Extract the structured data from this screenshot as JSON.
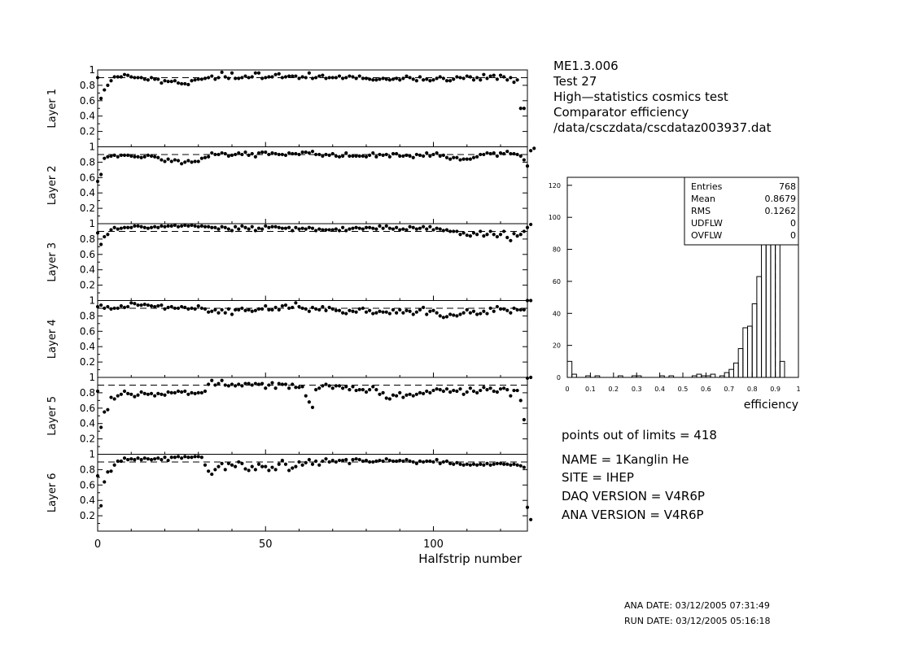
{
  "header": {
    "lines": [
      "ME1.3.006",
      "Test 27",
      "High—statistics cosmics test",
      "Comparator efficiency",
      "/data/csczdata/cscdataz003937.dat"
    ]
  },
  "info": {
    "points_out_of_limits": "points out of limits = 418",
    "name": "NAME =   1Kanglin He",
    "site": "SITE =     IHEP",
    "daq_version": "DAQ VERSION =     V4R6P",
    "ana_version": "ANA VERSION =     V4R6P"
  },
  "footer": {
    "ana_date": "ANA DATE:  03/12/2005 07:31:49",
    "run_date": "RUN DATE:  03/12/2005 05:16:18"
  },
  "colors": {
    "ink": "#000000",
    "background": "#ffffff"
  },
  "chart_data": [
    {
      "type": "scatter",
      "title": "",
      "xlabel": "Halfstrip number",
      "xlim": [
        0,
        128
      ],
      "ylim": [
        0,
        1
      ],
      "x_ticks": [
        "0",
        "50",
        "100"
      ],
      "y_ticks": [
        "0.2",
        "0.4",
        "0.6",
        "0.8",
        "1"
      ],
      "reference_line": 0.9,
      "panels": [
        {
          "ylabel": "Layer 1",
          "x_start": 0,
          "values": [
            0.9,
            0.63,
            0.74,
            0.8,
            0.86,
            0.91,
            0.91,
            0.91,
            0.94,
            0.93,
            0.91,
            0.9,
            0.9,
            0.9,
            0.88,
            0.87,
            0.9,
            0.88,
            0.88,
            0.83,
            0.86,
            0.85,
            0.85,
            0.86,
            0.83,
            0.82,
            0.82,
            0.81,
            0.86,
            0.87,
            0.88,
            0.88,
            0.89,
            0.9,
            0.92,
            0.88,
            0.9,
            0.97,
            0.91,
            0.89,
            0.96,
            0.89,
            0.89,
            0.9,
            0.92,
            0.9,
            0.91,
            0.96,
            0.96,
            0.89,
            0.9,
            0.91,
            0.91,
            0.94,
            0.95,
            0.9,
            0.91,
            0.92,
            0.92,
            0.92,
            0.89,
            0.91,
            0.9,
            0.96,
            0.89,
            0.9,
            0.92,
            0.93,
            0.89,
            0.9,
            0.9,
            0.9,
            0.92,
            0.89,
            0.9,
            0.92,
            0.91,
            0.89,
            0.92,
            0.89,
            0.89,
            0.88,
            0.87,
            0.87,
            0.88,
            0.89,
            0.88,
            0.87,
            0.88,
            0.89,
            0.87,
            0.89,
            0.92,
            0.9,
            0.88,
            0.86,
            0.91,
            0.87,
            0.88,
            0.86,
            0.87,
            0.89,
            0.91,
            0.89,
            0.86,
            0.86,
            0.88,
            0.91,
            0.9,
            0.89,
            0.92,
            0.91,
            0.87,
            0.9,
            0.87,
            0.94,
            0.89,
            0.92,
            0.93,
            0.88,
            0.93,
            0.91,
            0.87,
            0.9,
            0.84,
            0.87,
            0.5,
            0.5
          ]
        },
        {
          "ylabel": "Layer 2",
          "x_start": 0,
          "values": [
            0.55,
            0.64,
            0.85,
            0.87,
            0.88,
            0.89,
            0.87,
            0.89,
            0.89,
            0.89,
            0.88,
            0.87,
            0.87,
            0.86,
            0.87,
            0.89,
            0.88,
            0.87,
            0.86,
            0.83,
            0.81,
            0.84,
            0.81,
            0.83,
            0.82,
            0.78,
            0.8,
            0.82,
            0.8,
            0.81,
            0.81,
            0.85,
            0.86,
            0.87,
            0.92,
            0.9,
            0.9,
            0.92,
            0.91,
            0.88,
            0.89,
            0.9,
            0.92,
            0.9,
            0.93,
            0.89,
            0.91,
            0.87,
            0.92,
            0.93,
            0.93,
            0.9,
            0.92,
            0.91,
            0.9,
            0.9,
            0.89,
            0.92,
            0.91,
            0.91,
            0.9,
            0.93,
            0.93,
            0.92,
            0.94,
            0.9,
            0.9,
            0.88,
            0.9,
            0.89,
            0.91,
            0.88,
            0.87,
            0.88,
            0.92,
            0.88,
            0.88,
            0.88,
            0.88,
            0.88,
            0.87,
            0.89,
            0.92,
            0.87,
            0.9,
            0.89,
            0.9,
            0.87,
            0.91,
            0.91,
            0.88,
            0.88,
            0.89,
            0.88,
            0.86,
            0.9,
            0.89,
            0.88,
            0.92,
            0.88,
            0.9,
            0.92,
            0.88,
            0.89,
            0.86,
            0.84,
            0.86,
            0.86,
            0.83,
            0.84,
            0.84,
            0.84,
            0.86,
            0.87,
            0.9,
            0.9,
            0.92,
            0.91,
            0.92,
            0.88,
            0.92,
            0.91,
            0.94,
            0.91,
            0.91,
            0.9,
            0.88,
            0.83,
            0.75,
            0.95,
            0.98
          ]
        },
        {
          "ylabel": "Layer 3",
          "x_start": 0,
          "values": [
            0.88,
            0.73,
            0.83,
            0.86,
            0.92,
            0.95,
            0.93,
            0.94,
            0.95,
            0.95,
            0.95,
            0.97,
            0.97,
            0.96,
            0.95,
            0.94,
            0.95,
            0.96,
            0.95,
            0.97,
            0.96,
            0.97,
            0.97,
            0.98,
            0.96,
            0.97,
            0.98,
            0.97,
            0.98,
            0.97,
            0.96,
            0.97,
            0.96,
            0.96,
            0.95,
            0.95,
            0.93,
            0.96,
            0.95,
            0.93,
            0.91,
            0.96,
            0.93,
            0.97,
            0.95,
            0.93,
            0.96,
            0.91,
            0.94,
            0.93,
            0.97,
            0.95,
            0.96,
            0.96,
            0.95,
            0.94,
            0.94,
            0.95,
            0.91,
            0.95,
            0.93,
            0.94,
            0.93,
            0.95,
            0.94,
            0.91,
            0.93,
            0.92,
            0.92,
            0.92,
            0.92,
            0.93,
            0.91,
            0.95,
            0.91,
            0.93,
            0.94,
            0.95,
            0.94,
            0.93,
            0.95,
            0.95,
            0.94,
            0.93,
            0.97,
            0.94,
            0.97,
            0.94,
            0.93,
            0.95,
            0.92,
            0.93,
            0.92,
            0.96,
            0.95,
            0.93,
            0.94,
            0.96,
            0.93,
            0.96,
            0.92,
            0.94,
            0.93,
            0.91,
            0.92,
            0.9,
            0.9,
            0.9,
            0.86,
            0.88,
            0.85,
            0.84,
            0.88,
            0.86,
            0.9,
            0.84,
            0.86,
            0.9,
            0.86,
            0.83,
            0.86,
            0.9,
            0.82,
            0.78,
            0.87,
            0.84,
            0.86,
            0.9,
            0.95,
            0.99
          ]
        },
        {
          "ylabel": "Layer 4",
          "x_start": 0,
          "values": [
            0.92,
            0.94,
            0.9,
            0.92,
            0.89,
            0.9,
            0.9,
            0.93,
            0.91,
            0.92,
            0.97,
            0.96,
            0.94,
            0.94,
            0.95,
            0.94,
            0.93,
            0.92,
            0.93,
            0.94,
            0.89,
            0.91,
            0.92,
            0.9,
            0.9,
            0.92,
            0.91,
            0.89,
            0.9,
            0.89,
            0.93,
            0.9,
            0.89,
            0.85,
            0.86,
            0.88,
            0.84,
            0.88,
            0.84,
            0.89,
            0.82,
            0.88,
            0.88,
            0.9,
            0.87,
            0.88,
            0.86,
            0.87,
            0.89,
            0.89,
            0.93,
            0.88,
            0.88,
            0.91,
            0.88,
            0.93,
            0.94,
            0.9,
            0.91,
            0.97,
            0.92,
            0.9,
            0.89,
            0.86,
            0.91,
            0.89,
            0.88,
            0.92,
            0.87,
            0.91,
            0.89,
            0.87,
            0.87,
            0.84,
            0.83,
            0.87,
            0.86,
            0.85,
            0.89,
            0.9,
            0.85,
            0.87,
            0.83,
            0.84,
            0.86,
            0.85,
            0.85,
            0.83,
            0.88,
            0.84,
            0.88,
            0.84,
            0.87,
            0.86,
            0.82,
            0.85,
            0.88,
            0.91,
            0.82,
            0.86,
            0.87,
            0.84,
            0.8,
            0.78,
            0.79,
            0.82,
            0.81,
            0.8,
            0.82,
            0.84,
            0.88,
            0.84,
            0.86,
            0.82,
            0.83,
            0.86,
            0.83,
            0.9,
            0.86,
            0.92,
            0.89,
            0.89,
            0.87,
            0.84,
            0.9,
            0.88,
            0.88,
            0.88,
            1.0,
            1.0
          ]
        },
        {
          "ylabel": "Layer 5",
          "x_start": 0,
          "values": [
            0.82,
            0.35,
            0.55,
            0.58,
            0.74,
            0.72,
            0.76,
            0.78,
            0.82,
            0.79,
            0.78,
            0.75,
            0.77,
            0.81,
            0.79,
            0.78,
            0.79,
            0.76,
            0.79,
            0.78,
            0.77,
            0.81,
            0.8,
            0.8,
            0.82,
            0.81,
            0.82,
            0.78,
            0.8,
            0.79,
            0.8,
            0.8,
            0.82,
            0.91,
            0.96,
            0.9,
            0.92,
            0.96,
            0.9,
            0.89,
            0.91,
            0.89,
            0.91,
            0.89,
            0.92,
            0.92,
            0.9,
            0.92,
            0.91,
            0.92,
            0.86,
            0.9,
            0.93,
            0.86,
            0.92,
            0.91,
            0.91,
            0.86,
            0.91,
            0.87,
            0.87,
            0.88,
            0.76,
            0.68,
            0.61,
            0.84,
            0.86,
            0.89,
            0.91,
            0.89,
            0.86,
            0.89,
            0.89,
            0.86,
            0.88,
            0.84,
            0.88,
            0.83,
            0.84,
            0.84,
            0.81,
            0.84,
            0.88,
            0.84,
            0.78,
            0.8,
            0.73,
            0.72,
            0.77,
            0.76,
            0.8,
            0.74,
            0.77,
            0.78,
            0.76,
            0.78,
            0.8,
            0.79,
            0.82,
            0.8,
            0.83,
            0.85,
            0.84,
            0.82,
            0.85,
            0.81,
            0.83,
            0.82,
            0.85,
            0.78,
            0.81,
            0.86,
            0.82,
            0.8,
            0.83,
            0.87,
            0.84,
            0.86,
            0.82,
            0.81,
            0.85,
            0.86,
            0.84,
            0.76,
            0.83,
            0.83,
            0.7,
            0.45,
            0.99,
            1.0
          ]
        },
        {
          "ylabel": "Layer 6",
          "x_start": 0,
          "values": [
            0.72,
            0.33,
            0.64,
            0.77,
            0.78,
            0.86,
            0.91,
            0.91,
            0.95,
            0.93,
            0.94,
            0.93,
            0.95,
            0.93,
            0.95,
            0.94,
            0.93,
            0.94,
            0.95,
            0.93,
            0.96,
            0.92,
            0.96,
            0.96,
            0.97,
            0.95,
            0.97,
            0.96,
            0.96,
            0.97,
            0.97,
            0.96,
            0.86,
            0.78,
            0.74,
            0.8,
            0.84,
            0.88,
            0.8,
            0.88,
            0.86,
            0.84,
            0.9,
            0.88,
            0.81,
            0.79,
            0.84,
            0.8,
            0.87,
            0.84,
            0.84,
            0.79,
            0.83,
            0.8,
            0.87,
            0.92,
            0.87,
            0.79,
            0.82,
            0.84,
            0.9,
            0.86,
            0.89,
            0.93,
            0.87,
            0.91,
            0.86,
            0.91,
            0.94,
            0.9,
            0.92,
            0.9,
            0.92,
            0.92,
            0.93,
            0.88,
            0.93,
            0.94,
            0.93,
            0.91,
            0.92,
            0.9,
            0.9,
            0.91,
            0.92,
            0.91,
            0.94,
            0.92,
            0.91,
            0.91,
            0.92,
            0.91,
            0.93,
            0.91,
            0.9,
            0.88,
            0.91,
            0.9,
            0.91,
            0.91,
            0.9,
            0.93,
            0.88,
            0.9,
            0.91,
            0.88,
            0.87,
            0.89,
            0.87,
            0.86,
            0.87,
            0.86,
            0.87,
            0.86,
            0.87,
            0.86,
            0.88,
            0.86,
            0.87,
            0.88,
            0.88,
            0.87,
            0.87,
            0.86,
            0.87,
            0.86,
            0.85,
            0.83,
            0.31,
            0.15
          ]
        }
      ]
    },
    {
      "type": "bar",
      "title": "",
      "xlabel": "efficiency",
      "ylabel": "",
      "xlim": [
        0,
        1
      ],
      "ylim": [
        0,
        125
      ],
      "x_ticks": [
        "0",
        "0.1",
        "0.2",
        "0.3",
        "0.4",
        "0.5",
        "0.6",
        "0.7",
        "0.8",
        "0.9",
        "1"
      ],
      "y_ticks": [
        "0",
        "20",
        "40",
        "60",
        "80",
        "100",
        "120"
      ],
      "reference_line": 0.9,
      "bin_width": 0.02,
      "values": [
        10,
        2,
        0,
        0,
        1,
        0,
        1,
        0,
        0,
        0,
        0,
        1,
        0,
        0,
        1,
        1,
        0,
        0,
        0,
        0,
        1,
        0,
        1,
        0,
        0,
        0,
        0,
        1,
        2,
        1,
        1,
        2,
        0,
        1,
        3,
        5,
        9,
        18,
        31,
        32,
        46,
        63,
        92,
        117,
        110,
        116,
        10
      ],
      "stats": [
        {
          "label": "Entries",
          "value": "768"
        },
        {
          "label": "Mean",
          "value": "0.8679"
        },
        {
          "label": "RMS",
          "value": "0.1262"
        },
        {
          "label": "UDFLW",
          "value": "0"
        },
        {
          "label": "OVFLW",
          "value": "0"
        }
      ]
    }
  ]
}
